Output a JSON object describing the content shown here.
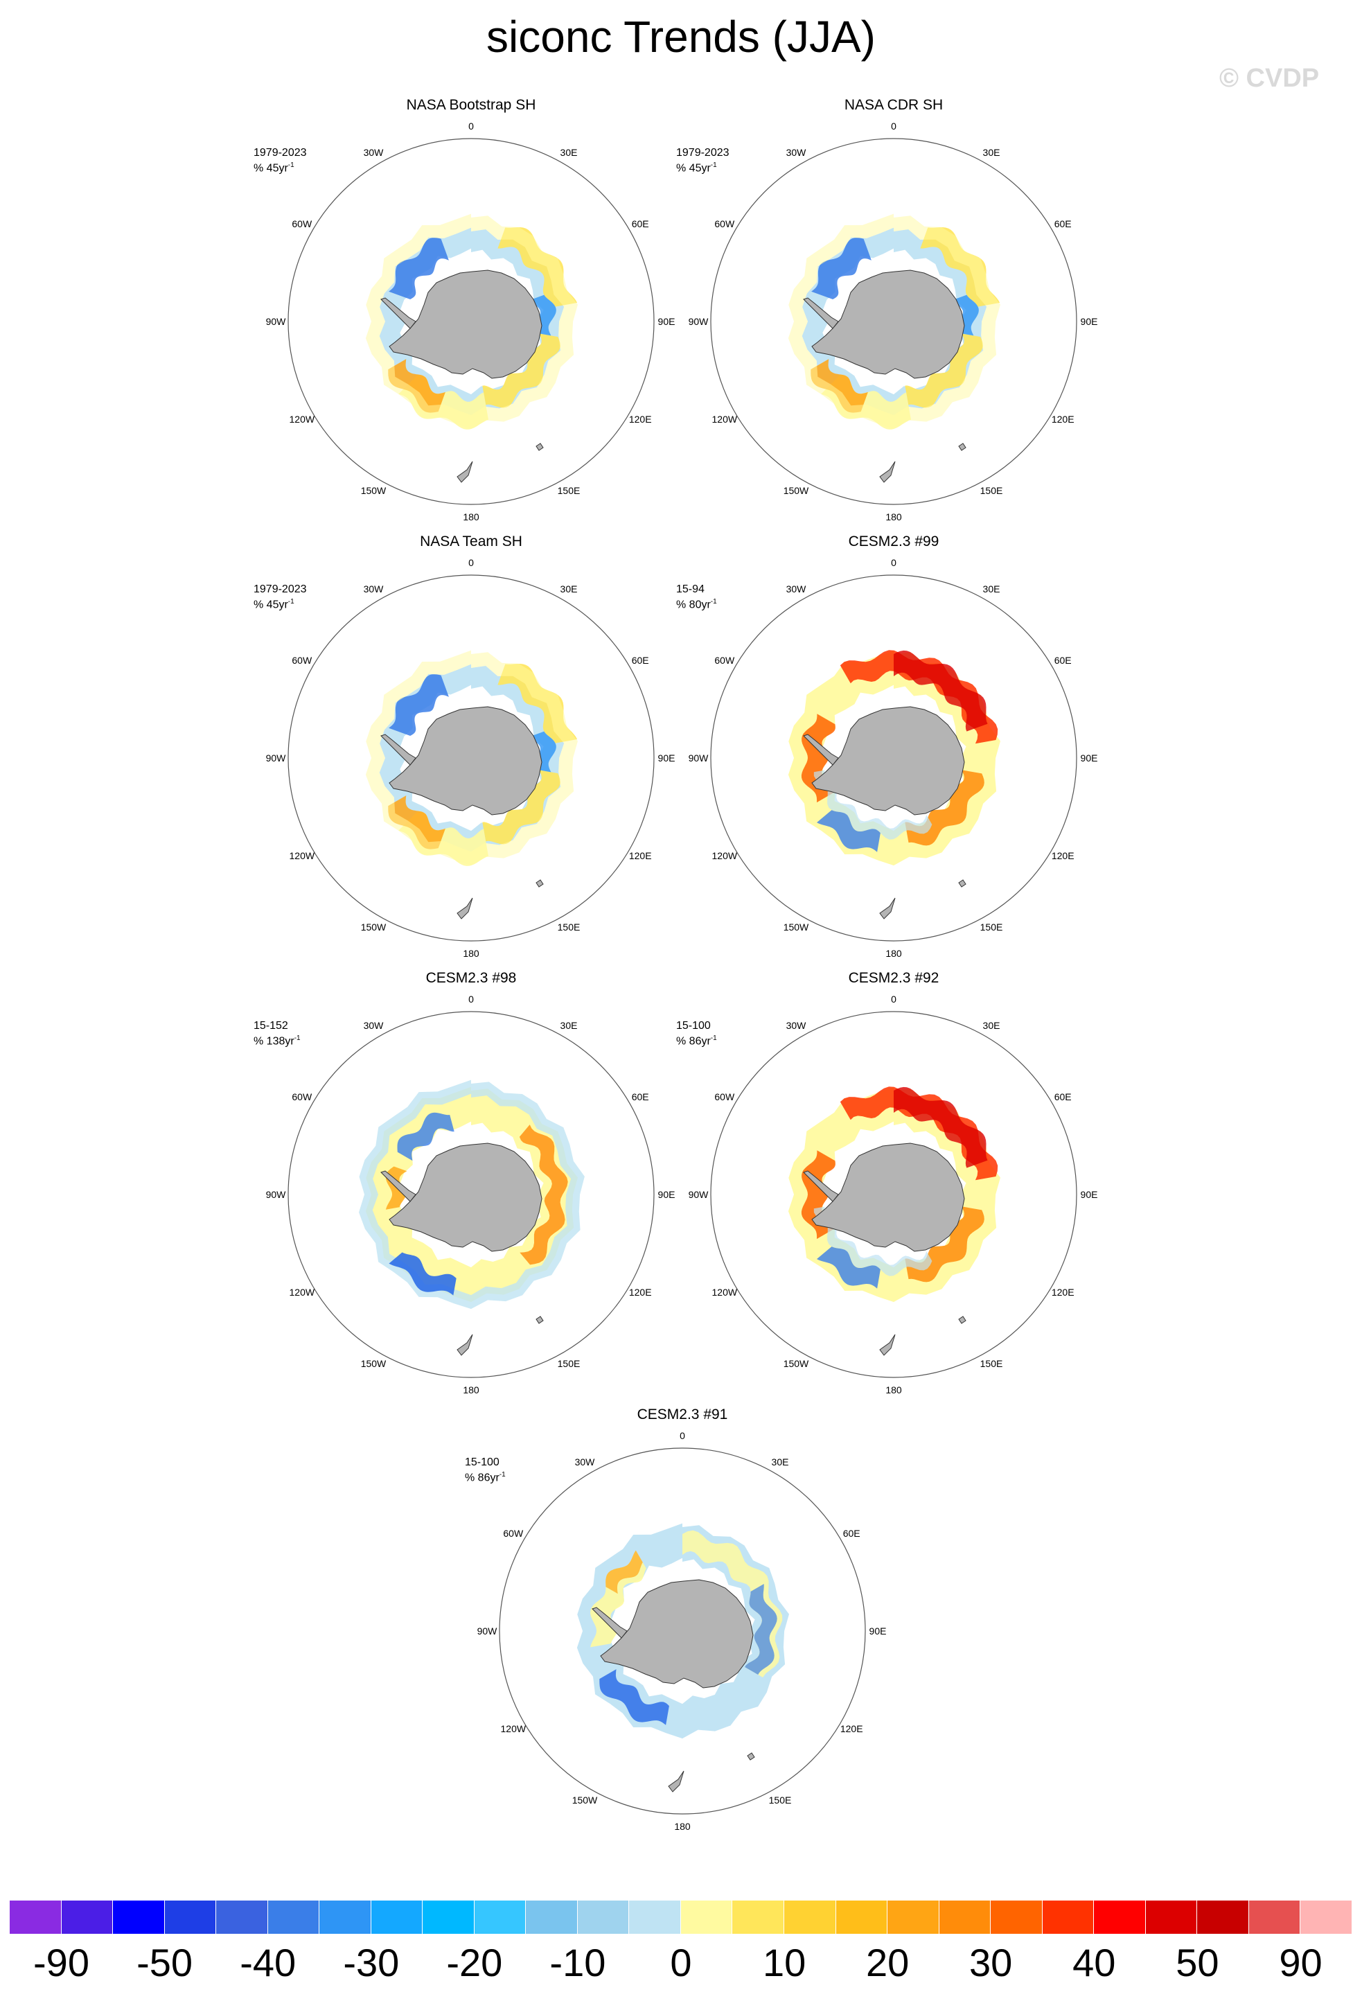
{
  "title": "siconc Trends (JJA)",
  "watermark": "© CVDP",
  "lon_labels": [
    "0",
    "30E",
    "60E",
    "90E",
    "120E",
    "150E",
    "180",
    "150W",
    "120W",
    "90W",
    "60W",
    "30W"
  ],
  "panels": [
    {
      "title": "NASA Bootstrap SH",
      "period": "1979-2023",
      "trend_unit": "% 45yr",
      "trend_unit_exp": "-1",
      "pattern": "obs"
    },
    {
      "title": "NASA CDR SH",
      "period": "1979-2023",
      "trend_unit": "% 45yr",
      "trend_unit_exp": "-1",
      "pattern": "obs"
    },
    {
      "title": "NASA Team SH",
      "period": "1979-2023",
      "trend_unit": "% 45yr",
      "trend_unit_exp": "-1",
      "pattern": "obs"
    },
    {
      "title": "CESM2.3 #99",
      "period": "15-94",
      "trend_unit": "% 80yr",
      "trend_unit_exp": "-1",
      "pattern": "strong_pos"
    },
    {
      "title": "CESM2.3 #98",
      "period": "15-152",
      "trend_unit": "% 138yr",
      "trend_unit_exp": "-1",
      "pattern": "mixed"
    },
    {
      "title": "CESM2.3 #92",
      "period": "15-100",
      "trend_unit": "% 86yr",
      "trend_unit_exp": "-1",
      "pattern": "strong_pos"
    },
    {
      "title": "CESM2.3 #91",
      "period": "15-100",
      "trend_unit": "% 86yr",
      "trend_unit_exp": "-1",
      "pattern": "weak_neg"
    }
  ],
  "colorbar": {
    "colors": [
      "#8a2be2",
      "#4b1ee6",
      "#0000ff",
      "#1e3ee6",
      "#3a62e0",
      "#3a7ee8",
      "#2e95f5",
      "#14a8ff",
      "#00b8ff",
      "#36c6ff",
      "#7ac4ee",
      "#9fd3ee",
      "#bfe3f3",
      "#fffaa0",
      "#ffe65a",
      "#ffd232",
      "#ffbe19",
      "#ffa514",
      "#ff8c0a",
      "#ff6400",
      "#ff3200",
      "#ff0000",
      "#dc0000",
      "#c80000",
      "#e65050",
      "#ffb4b4"
    ],
    "labels": [
      "-90",
      "-50",
      "-40",
      "-30",
      "-20",
      "-10",
      "0",
      "10",
      "20",
      "30",
      "40",
      "50",
      "90"
    ]
  }
}
